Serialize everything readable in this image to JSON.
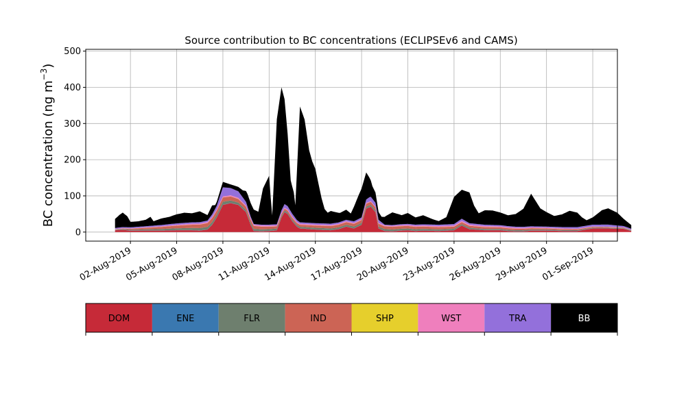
{
  "chart_data": {
    "type": "area",
    "stacked": true,
    "title": "Source contribution to BC concentrations (ECLIPSEv6 and CAMS)",
    "ylabel": "BC concentration (ng m",
    "ylabel_sup": "−3",
    "ylabel_close": ")",
    "xlabel": "",
    "ylim": [
      -25,
      505
    ],
    "yticks": [
      0,
      100,
      200,
      300,
      400,
      500
    ],
    "xlim": [
      -1.9,
      32.6
    ],
    "xticks": [
      {
        "day": 1,
        "label": "02-Aug-2019"
      },
      {
        "day": 4,
        "label": "05-Aug-2019"
      },
      {
        "day": 7,
        "label": "08-Aug-2019"
      },
      {
        "day": 10,
        "label": "11-Aug-2019"
      },
      {
        "day": 13,
        "label": "14-Aug-2019"
      },
      {
        "day": 16,
        "label": "17-Aug-2019"
      },
      {
        "day": 19,
        "label": "20-Aug-2019"
      },
      {
        "day": 22,
        "label": "23-Aug-2019"
      },
      {
        "day": 25,
        "label": "26-Aug-2019"
      },
      {
        "day": 28,
        "label": "29-Aug-2019"
      },
      {
        "day": 31,
        "label": "01-Sep-2019"
      }
    ],
    "grid": true,
    "x_unit": "days after 01-Aug-2019",
    "series": [
      {
        "name": "DOM",
        "color": "#c62a38",
        "points": [
          [
            0,
            5
          ],
          [
            0.5,
            6
          ],
          [
            1,
            4
          ],
          [
            2,
            4
          ],
          [
            3,
            4
          ],
          [
            4,
            5
          ],
          [
            5,
            5
          ],
          [
            5.5,
            4
          ],
          [
            6,
            7
          ],
          [
            6.3,
            20
          ],
          [
            6.6,
            40
          ],
          [
            7,
            75
          ],
          [
            7.5,
            80
          ],
          [
            8,
            75
          ],
          [
            8.5,
            55
          ],
          [
            8.8,
            20
          ],
          [
            9,
            3
          ],
          [
            9.5,
            2
          ],
          [
            10,
            3
          ],
          [
            10.5,
            5
          ],
          [
            10.8,
            40
          ],
          [
            11,
            55
          ],
          [
            11.2,
            50
          ],
          [
            11.5,
            30
          ],
          [
            11.8,
            15
          ],
          [
            12,
            10
          ],
          [
            13,
            7
          ],
          [
            14,
            5
          ],
          [
            14.5,
            8
          ],
          [
            15,
            15
          ],
          [
            15.5,
            10
          ],
          [
            16,
            20
          ],
          [
            16.3,
            65
          ],
          [
            16.6,
            70
          ],
          [
            16.9,
            55
          ],
          [
            17.1,
            10
          ],
          [
            17.5,
            3
          ],
          [
            18,
            2
          ],
          [
            18.5,
            4
          ],
          [
            19,
            5
          ],
          [
            19.5,
            3
          ],
          [
            20,
            4
          ],
          [
            21,
            3
          ],
          [
            22,
            5
          ],
          [
            22.5,
            18
          ],
          [
            23,
            8
          ],
          [
            24,
            5
          ],
          [
            25,
            5
          ],
          [
            25.5,
            3
          ],
          [
            26,
            2
          ],
          [
            26.5,
            2
          ],
          [
            27,
            4
          ],
          [
            28,
            4
          ],
          [
            29,
            3
          ],
          [
            30,
            3
          ],
          [
            31,
            10
          ],
          [
            32,
            10
          ],
          [
            33,
            9
          ],
          [
            33.5,
            3
          ]
        ]
      },
      {
        "name": "ENE",
        "color": "#3a78b0",
        "points": [
          [
            0,
            0.5
          ],
          [
            33.5,
            0.5
          ]
        ]
      },
      {
        "name": "FLR",
        "color": "#6e7f6e",
        "points": [
          [
            0,
            1
          ],
          [
            7,
            8
          ],
          [
            8,
            6
          ],
          [
            11,
            4
          ],
          [
            16.5,
            5
          ],
          [
            33.5,
            1
          ]
        ]
      },
      {
        "name": "IND",
        "color": "#cc6455",
        "points": [
          [
            0,
            1
          ],
          [
            7,
            12
          ],
          [
            8,
            10
          ],
          [
            11,
            5
          ],
          [
            16.5,
            8
          ],
          [
            33.5,
            1
          ]
        ]
      },
      {
        "name": "SHP",
        "color": "#e6cf2c",
        "points": [
          [
            0,
            0.3
          ],
          [
            33.5,
            0.3
          ]
        ]
      },
      {
        "name": "WST",
        "color": "#ef7fbd",
        "points": [
          [
            0,
            0.5
          ],
          [
            7,
            3
          ],
          [
            16.5,
            2
          ],
          [
            22.5,
            3
          ],
          [
            33.5,
            0.5
          ]
        ]
      },
      {
        "name": "TRA",
        "color": "#9370db",
        "points": [
          [
            0,
            3
          ],
          [
            2,
            3
          ],
          [
            4,
            4
          ],
          [
            6,
            4
          ],
          [
            6.6,
            10
          ],
          [
            7,
            25
          ],
          [
            7.5,
            20
          ],
          [
            8,
            18
          ],
          [
            8.5,
            10
          ],
          [
            9,
            2
          ],
          [
            10.5,
            3
          ],
          [
            11,
            10
          ],
          [
            11.5,
            8
          ],
          [
            12,
            4
          ],
          [
            13,
            4
          ],
          [
            14,
            4
          ],
          [
            15,
            4
          ],
          [
            16,
            5
          ],
          [
            16.5,
            12
          ],
          [
            17,
            10
          ],
          [
            17.5,
            2
          ],
          [
            19,
            3
          ],
          [
            22,
            4
          ],
          [
            22.5,
            6
          ],
          [
            23,
            4
          ],
          [
            26,
            3
          ],
          [
            28,
            3
          ],
          [
            31,
            5
          ],
          [
            32,
            6
          ],
          [
            33.5,
            3
          ]
        ]
      },
      {
        "name": "BB",
        "color": "#000000",
        "points": [
          [
            0,
            25
          ],
          [
            0.3,
            35
          ],
          [
            0.5,
            40
          ],
          [
            0.8,
            30
          ],
          [
            1,
            15
          ],
          [
            1.5,
            15
          ],
          [
            2,
            18
          ],
          [
            2.3,
            25
          ],
          [
            2.5,
            12
          ],
          [
            3,
            18
          ],
          [
            3.5,
            20
          ],
          [
            4,
            25
          ],
          [
            4.5,
            28
          ],
          [
            5,
            25
          ],
          [
            5.5,
            30
          ],
          [
            6,
            15
          ],
          [
            6.3,
            25
          ],
          [
            6.5,
            10
          ],
          [
            7,
            15
          ],
          [
            7.5,
            10
          ],
          [
            8,
            12
          ],
          [
            8.3,
            20
          ],
          [
            8.6,
            35
          ],
          [
            9,
            40
          ],
          [
            9.3,
            35
          ],
          [
            9.6,
            100
          ],
          [
            10,
            135
          ],
          [
            10.1,
            75
          ],
          [
            10.2,
            25
          ],
          [
            10.5,
            290
          ],
          [
            10.8,
            340
          ],
          [
            11,
            290
          ],
          [
            11.2,
            200
          ],
          [
            11.4,
            85
          ],
          [
            11.6,
            65
          ],
          [
            11.7,
            35
          ],
          [
            12,
            320
          ],
          [
            12.3,
            285
          ],
          [
            12.6,
            200
          ],
          [
            12.8,
            170
          ],
          [
            13,
            150
          ],
          [
            13.2,
            110
          ],
          [
            13.4,
            70
          ],
          [
            13.6,
            40
          ],
          [
            13.8,
            30
          ],
          [
            14,
            35
          ],
          [
            14.3,
            30
          ],
          [
            14.6,
            25
          ],
          [
            15,
            28
          ],
          [
            15.3,
            20
          ],
          [
            15.5,
            40
          ],
          [
            15.8,
            65
          ],
          [
            16,
            80
          ],
          [
            16.3,
            75
          ],
          [
            16.5,
            55
          ],
          [
            16.7,
            35
          ],
          [
            17,
            25
          ],
          [
            17.3,
            15
          ],
          [
            17.6,
            25
          ],
          [
            18,
            35
          ],
          [
            18.3,
            30
          ],
          [
            18.6,
            25
          ],
          [
            19,
            30
          ],
          [
            19.5,
            20
          ],
          [
            20,
            25
          ],
          [
            20.3,
            20
          ],
          [
            20.6,
            15
          ],
          [
            21,
            10
          ],
          [
            21.5,
            20
          ],
          [
            22,
            75
          ],
          [
            22.5,
            80
          ],
          [
            23,
            85
          ],
          [
            23.3,
            50
          ],
          [
            23.6,
            30
          ],
          [
            24,
            40
          ],
          [
            24.5,
            40
          ],
          [
            25,
            35
          ],
          [
            25.5,
            30
          ],
          [
            26,
            35
          ],
          [
            26.5,
            50
          ],
          [
            27,
            90
          ],
          [
            27.3,
            70
          ],
          [
            27.6,
            50
          ],
          [
            28,
            40
          ],
          [
            28.5,
            30
          ],
          [
            29,
            35
          ],
          [
            29.5,
            45
          ],
          [
            30,
            40
          ],
          [
            30.3,
            25
          ],
          [
            30.6,
            15
          ],
          [
            31,
            20
          ],
          [
            31.3,
            30
          ],
          [
            31.6,
            40
          ],
          [
            32,
            45
          ],
          [
            32.3,
            40
          ],
          [
            32.6,
            35
          ],
          [
            33,
            20
          ],
          [
            33.5,
            10
          ]
        ]
      }
    ],
    "legend": {
      "placement": "bottom colorbar",
      "entries": [
        {
          "label": "DOM",
          "color": "#c62a38",
          "text_color": "#000000"
        },
        {
          "label": "ENE",
          "color": "#3a78b0",
          "text_color": "#000000"
        },
        {
          "label": "FLR",
          "color": "#6e7f6e",
          "text_color": "#000000"
        },
        {
          "label": "IND",
          "color": "#cc6455",
          "text_color": "#000000"
        },
        {
          "label": "SHP",
          "color": "#e6cf2c",
          "text_color": "#000000"
        },
        {
          "label": "WST",
          "color": "#ef7fbd",
          "text_color": "#000000"
        },
        {
          "label": "TRA",
          "color": "#9370db",
          "text_color": "#000000"
        },
        {
          "label": "BB",
          "color": "#000000",
          "text_color": "#ffffff"
        }
      ]
    }
  }
}
